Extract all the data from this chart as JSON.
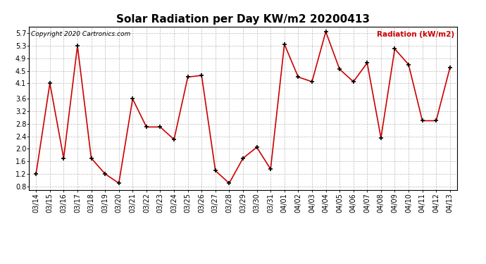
{
  "title": "Solar Radiation per Day KW/m2 20200413",
  "copyright_text": "Copyright 2020 Cartronics.com",
  "legend_text": "Radiation (kW/m2)",
  "dates": [
    "03/14",
    "03/15",
    "03/16",
    "03/17",
    "03/18",
    "03/19",
    "03/20",
    "03/21",
    "03/22",
    "03/23",
    "03/24",
    "03/25",
    "03/26",
    "03/27",
    "03/28",
    "03/29",
    "03/30",
    "03/31",
    "04/01",
    "04/02",
    "04/03",
    "04/04",
    "04/05",
    "04/06",
    "04/07",
    "04/08",
    "04/09",
    "04/10",
    "04/11",
    "04/12",
    "04/13"
  ],
  "values": [
    1.2,
    4.1,
    1.7,
    5.3,
    1.7,
    1.2,
    0.9,
    3.6,
    2.7,
    2.7,
    2.3,
    4.3,
    4.35,
    1.3,
    0.9,
    1.7,
    2.05,
    1.35,
    5.35,
    4.3,
    4.15,
    5.75,
    4.55,
    4.15,
    4.75,
    2.35,
    5.2,
    4.7,
    2.9,
    2.9,
    4.6
  ],
  "line_color": "#cc0000",
  "marker_color": "#000000",
  "background_color": "#ffffff",
  "grid_color": "#aaaaaa",
  "title_color": "#000000",
  "copyright_color": "#000000",
  "legend_color": "#cc0000",
  "ylim": [
    0.68,
    5.92
  ],
  "yticks": [
    0.8,
    1.2,
    1.6,
    2.0,
    2.4,
    2.8,
    3.2,
    3.6,
    4.1,
    4.5,
    4.9,
    5.3,
    5.7
  ],
  "title_fontsize": 11,
  "tick_fontsize": 7,
  "copyright_fontsize": 6.5,
  "legend_fontsize": 7.5
}
